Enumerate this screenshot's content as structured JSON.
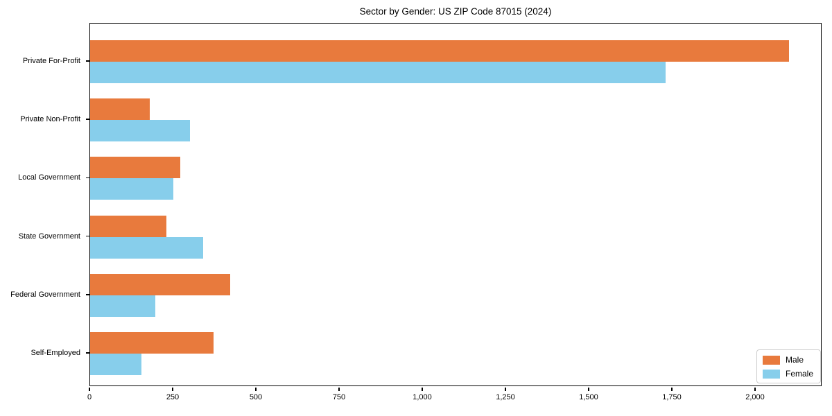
{
  "title": "Sector by Gender: US ZIP Code 87015 (2024)",
  "colors": {
    "male": "#E87A3D",
    "female": "#87CEEB",
    "axis": "#000000",
    "legend_border": "#cccccc",
    "background": "#ffffff"
  },
  "legend": {
    "position": "lower right",
    "items": [
      {
        "label": "Male",
        "color_key": "male"
      },
      {
        "label": "Female",
        "color_key": "female"
      }
    ]
  },
  "chart_data": {
    "type": "bar",
    "orientation": "horizontal",
    "title": "Sector by Gender: US ZIP Code 87015 (2024)",
    "categories": [
      "Private For-Profit",
      "Private Non-Profit",
      "Local Government",
      "State Government",
      "Federal Government",
      "Self-Employed"
    ],
    "series": [
      {
        "name": "Male",
        "color_key": "male",
        "values": [
          2100,
          180,
          270,
          230,
          420,
          370
        ]
      },
      {
        "name": "Female",
        "color_key": "female",
        "values": [
          1730,
          300,
          250,
          340,
          195,
          155
        ]
      }
    ],
    "xlabel": "",
    "ylabel": "",
    "xlim": [
      0,
      2200
    ],
    "xticks": [
      0,
      250,
      500,
      750,
      1000,
      1250,
      1500,
      1750,
      2000
    ],
    "xtick_labels": [
      "0",
      "250",
      "500",
      "750",
      "1,000",
      "1,250",
      "1,500",
      "1,750",
      "2,000"
    ],
    "grid": false,
    "legend_position": "lower right"
  }
}
